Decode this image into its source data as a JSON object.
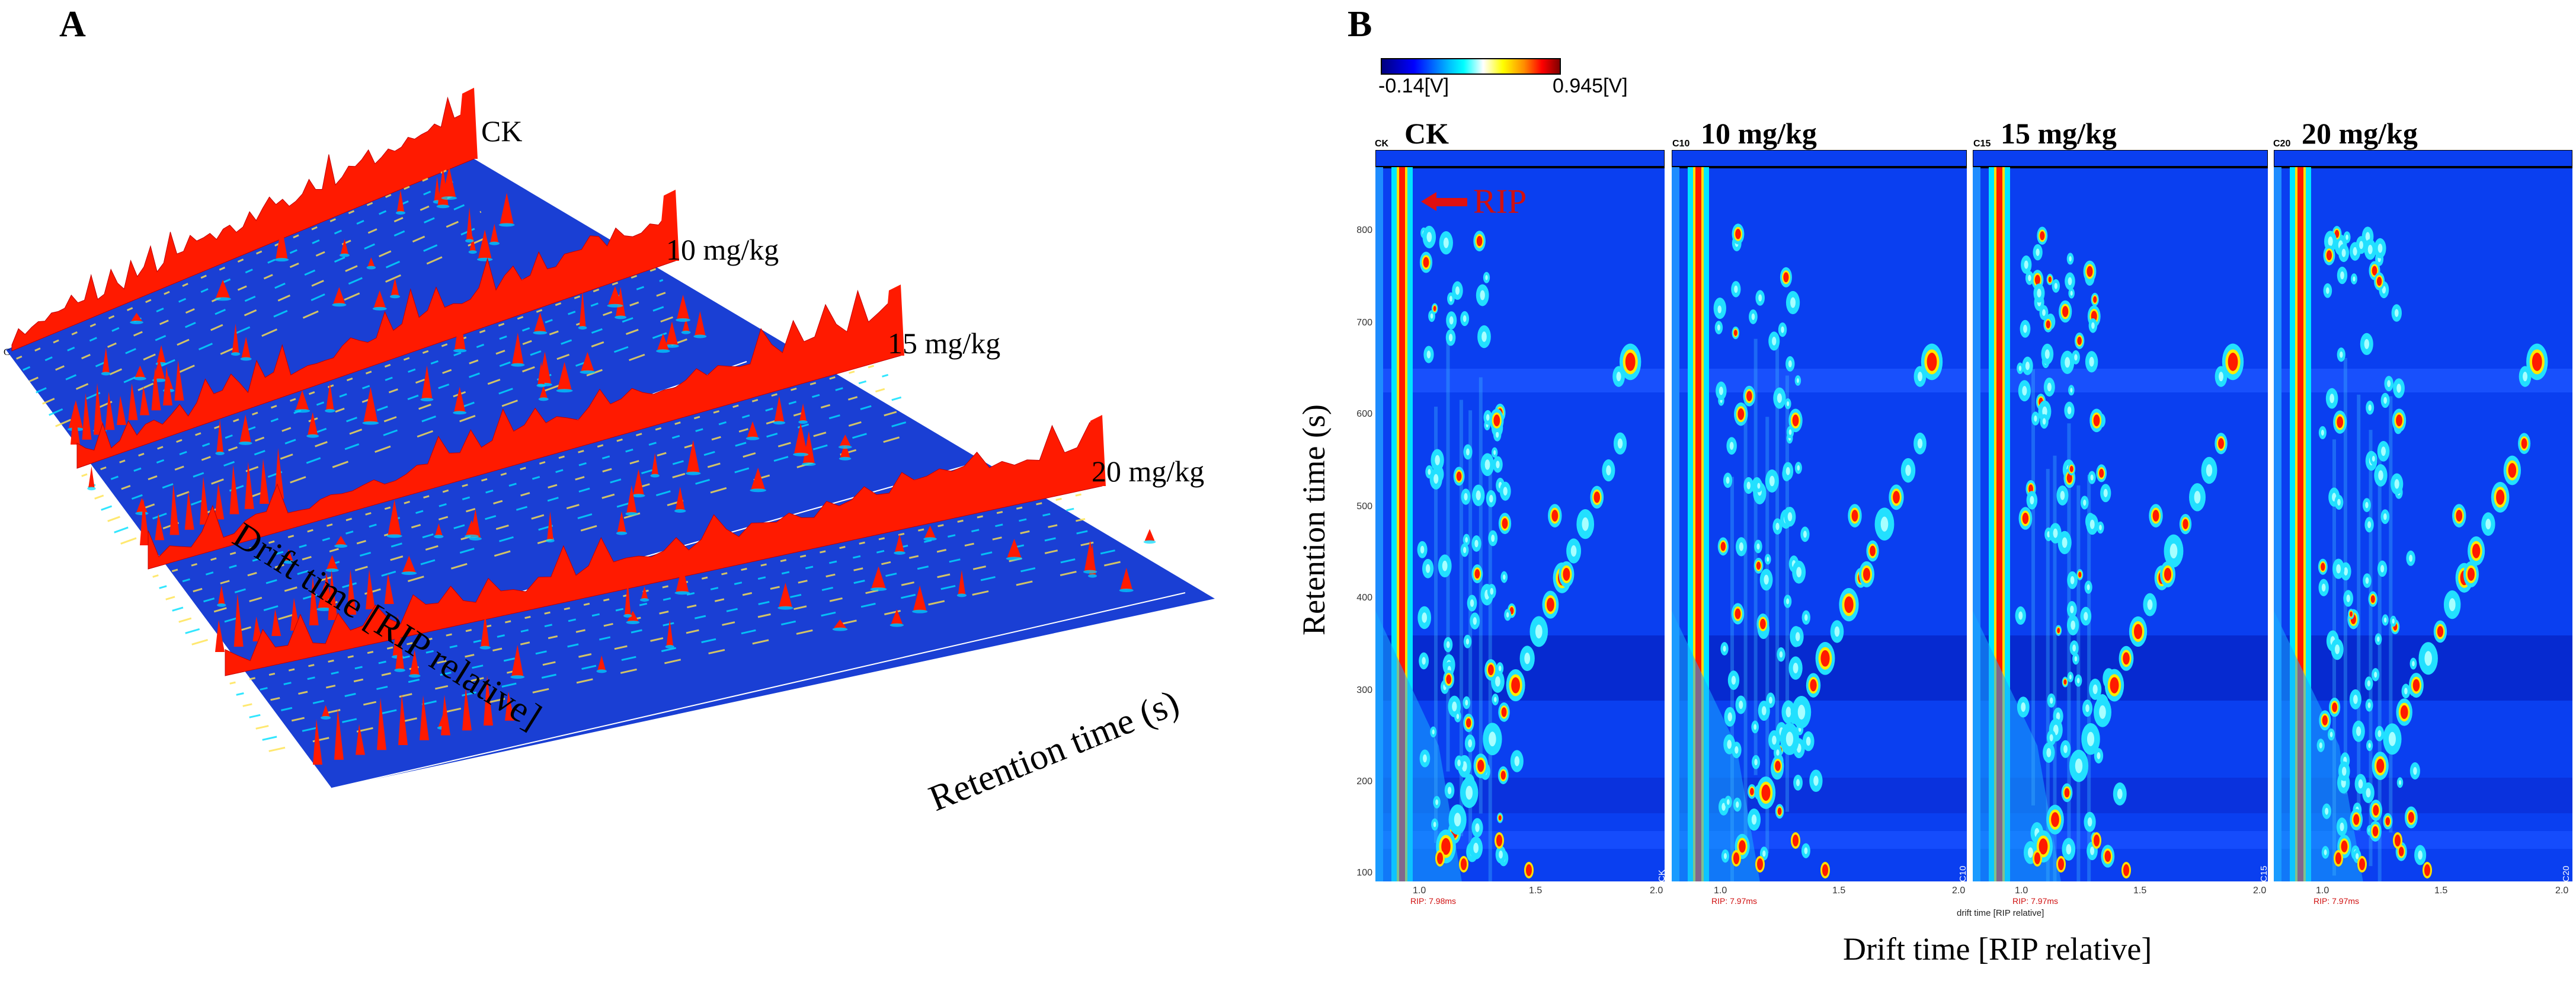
{
  "panel_a": {
    "letter": "A",
    "samples": [
      "CK",
      "10 mg/kg",
      "15 mg/kg",
      "20 mg/kg"
    ],
    "x_axis_label": "Drift time [RIP relative]",
    "y_axis_label": "Retention time (s)",
    "corner_code": "C"
  },
  "panel_b": {
    "letter": "B",
    "colorbar": {
      "min_label": "-0.14[V]",
      "max_label": "0.945[V]",
      "colors": [
        "#000080",
        "#0000ff",
        "#00ffff",
        "#ffffff",
        "#ffff00",
        "#ff0000",
        "#800000"
      ]
    },
    "panels": [
      {
        "code": "CK",
        "title": "CK"
      },
      {
        "code": "C10",
        "title": "10 mg/kg"
      },
      {
        "code": "C15",
        "title": "15 mg/kg"
      },
      {
        "code": "C20",
        "title": "20 mg/kg"
      }
    ],
    "rip_annotation": "RIP",
    "rip_footnote_ck": "RIP: 7.98ms",
    "rip_footnote_other": "RIP: 7.97ms",
    "y_ticks": [
      "800",
      "700",
      "600",
      "500",
      "400",
      "300",
      "200",
      "100"
    ],
    "x_ticks": [
      "1.0",
      "1.5",
      "2.0"
    ],
    "small_x_axis_label": "drift time [RIP relative]",
    "y_axis_label": "Retention time (s)",
    "x_axis_label": "Drift time [RIP relative]"
  }
}
